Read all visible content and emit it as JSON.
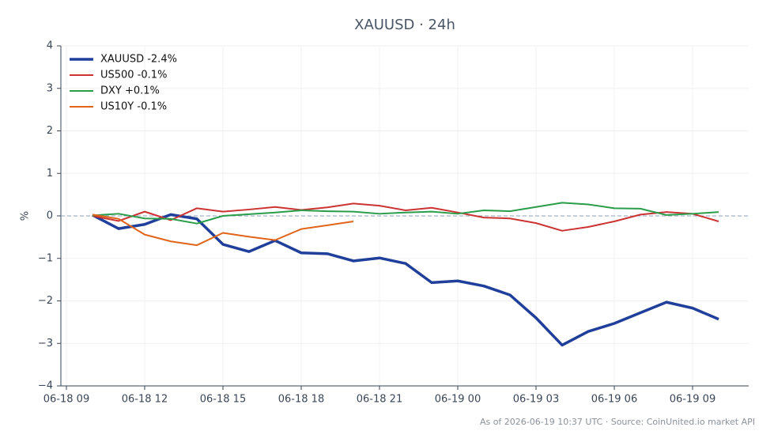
{
  "chart_data": {
    "type": "line",
    "title": "XAUUSD · 24h",
    "ylabel": "%",
    "footnote": "As of 2026-06-19 10:37 UTC · Source: CoinUnited.io market API",
    "x": [
      "06-18 10",
      "06-18 11",
      "06-18 12",
      "06-18 13",
      "06-18 14",
      "06-18 15",
      "06-18 16",
      "06-18 17",
      "06-18 18",
      "06-18 19",
      "06-18 20",
      "06-18 21",
      "06-18 22",
      "06-18 23",
      "06-19 00",
      "06-19 01",
      "06-19 02",
      "06-19 03",
      "06-19 04",
      "06-19 05",
      "06-19 06",
      "06-19 07",
      "06-19 08",
      "06-19 09",
      "06-19 10"
    ],
    "series": [
      {
        "name": "XAUUSD -2.4%",
        "color": "#1f3f9a",
        "values": [
          0.02,
          -0.3,
          -0.2,
          0.03,
          -0.07,
          -0.67,
          -0.84,
          -0.58,
          -0.87,
          -0.89,
          -1.06,
          -0.99,
          -1.12,
          -1.57,
          -1.53,
          -1.65,
          -1.86,
          -2.4,
          -3.04,
          -2.72,
          -2.53,
          -2.28,
          -2.03,
          -2.17,
          -2.43
        ]
      },
      {
        "name": "US500 -0.1%",
        "color": "#cc3333",
        "values": [
          0.0,
          -0.12,
          0.1,
          -0.1,
          0.18,
          0.1,
          0.15,
          0.21,
          0.14,
          0.2,
          0.29,
          0.24,
          0.13,
          0.19,
          0.08,
          -0.04,
          -0.06,
          -0.17,
          -0.35,
          -0.26,
          -0.13,
          0.03,
          0.09,
          0.05,
          -0.13
        ]
      },
      {
        "name": "DXY +0.1%",
        "color": "#2a9d4a",
        "values": [
          0.01,
          0.05,
          -0.06,
          -0.07,
          -0.18,
          0.0,
          0.04,
          0.08,
          0.13,
          0.11,
          0.1,
          0.05,
          0.08,
          0.1,
          0.05,
          0.13,
          0.11,
          0.21,
          0.31,
          0.27,
          0.18,
          0.17,
          0.02,
          0.05,
          0.09
        ]
      },
      {
        "name": "US10Y -0.1%",
        "color": "#e0651a",
        "values": [
          0.03,
          -0.07,
          -0.44,
          -0.6,
          -0.69,
          -0.4,
          -0.49,
          -0.57,
          -0.31,
          -0.22,
          -0.13,
          null,
          null,
          null,
          null,
          null,
          null,
          null,
          null,
          null,
          null,
          null,
          null,
          null,
          null
        ]
      }
    ],
    "xlim": [
      "06-18 09",
      "06-19 11"
    ],
    "xticks": [
      "06-18 09",
      "06-18 12",
      "06-18 15",
      "06-18 18",
      "06-18 21",
      "06-19 00",
      "06-19 03",
      "06-19 06",
      "06-19 09"
    ],
    "ylim": [
      -4,
      4
    ],
    "yticks": [
      {
        "value": -4,
        "label": "−4"
      },
      {
        "value": -3,
        "label": "−3"
      },
      {
        "value": -2,
        "label": "−2"
      },
      {
        "value": -1,
        "label": "−1"
      },
      0,
      1,
      2,
      3,
      4
    ],
    "zero_line": true,
    "grid": true,
    "legend": "upper left"
  }
}
